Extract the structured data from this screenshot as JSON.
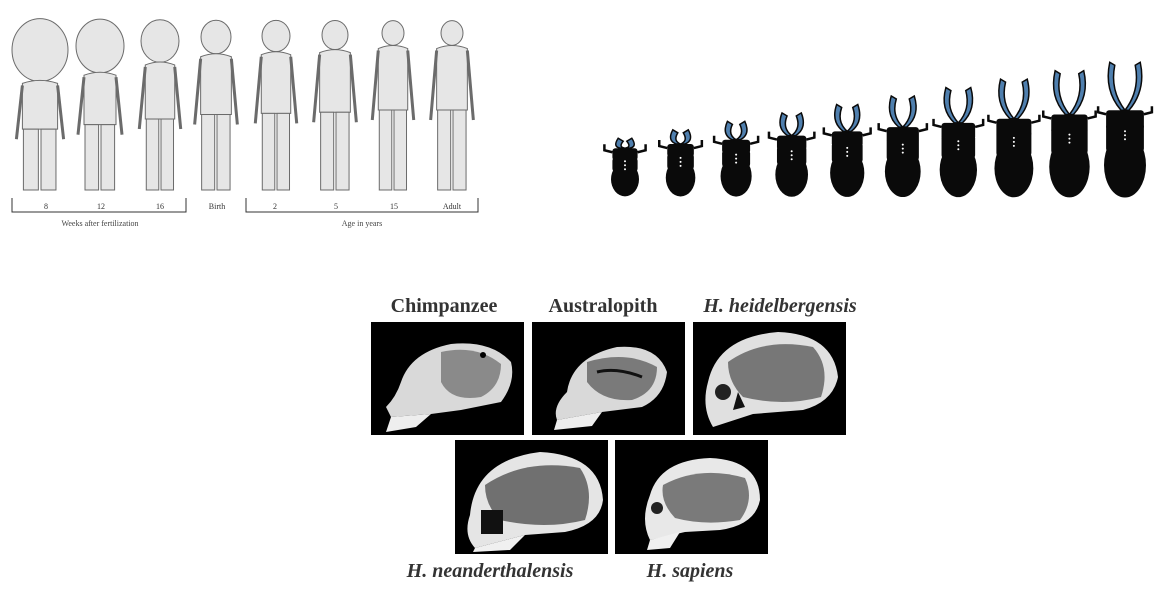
{
  "human_growth": {
    "stage_labels": [
      "8",
      "12",
      "16",
      "Birth",
      "2",
      "5",
      "15",
      "Adult"
    ],
    "group_captions": {
      "prenatal": "Weeks after fertilization",
      "postnatal": "Age in years"
    },
    "colors": {
      "outline": "#6b6b6b",
      "fill": "#e6e6e6"
    }
  },
  "beetle_series": {
    "count": 10,
    "colors": {
      "body": "#0a0a0a",
      "mandible": "#4f7fae"
    }
  },
  "skulls": {
    "top_row": [
      {
        "name": "Chimpanzee",
        "italic": false
      },
      {
        "name": "Australopith",
        "italic": false
      },
      {
        "name": "H. heidelbergensis",
        "italic": true
      }
    ],
    "bottom_row": [
      {
        "name": "H. neanderthalensis",
        "italic": true
      },
      {
        "name": "H. sapiens",
        "italic": true
      }
    ]
  }
}
